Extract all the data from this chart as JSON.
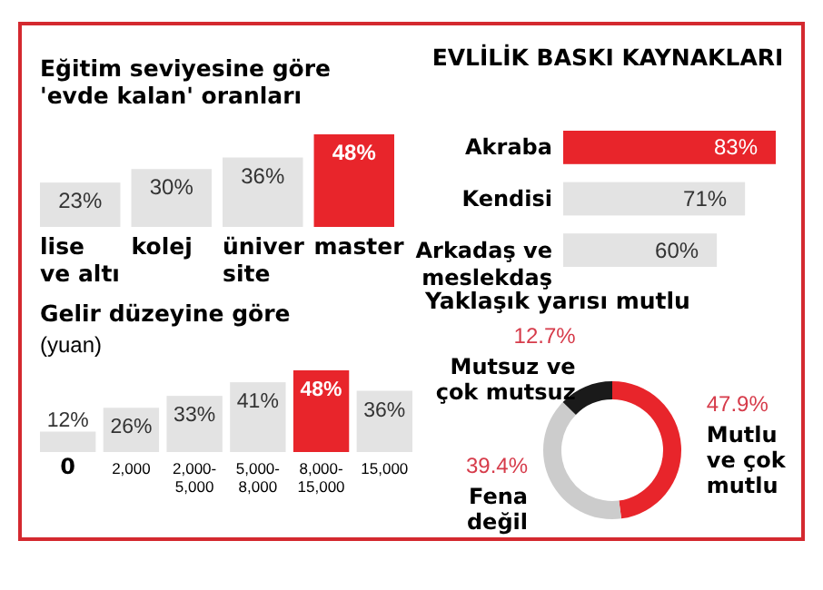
{
  "chart_data": [
    {
      "type": "bar",
      "title": "Eğitim seviyesine göre\n'evde kalan' oranları",
      "categories": [
        "lise\nve altı",
        "kolej",
        "üniver\nsite",
        "master"
      ],
      "values": [
        23,
        30,
        36,
        48
      ],
      "colors": [
        "#e3e3e3",
        "#e3e3e3",
        "#e3e3e3",
        "#e8252b"
      ],
      "value_labels": [
        "23%",
        "30%",
        "36%",
        "48%"
      ]
    },
    {
      "type": "bar",
      "title": "Gelir düzeyine göre",
      "subtitle": "(yuan)",
      "categories": [
        "0",
        "2,000",
        "2,000-\n5,000",
        "5,000-\n8,000",
        "8,000-\n15,000",
        "15,000"
      ],
      "values": [
        12,
        26,
        33,
        41,
        48,
        36
      ],
      "colors": [
        "#e3e3e3",
        "#e3e3e3",
        "#e3e3e3",
        "#e3e3e3",
        "#e8252b",
        "#e3e3e3"
      ],
      "value_labels": [
        "12%",
        "26%",
        "33%",
        "41%",
        "48%",
        "36%"
      ]
    },
    {
      "type": "bar",
      "orientation": "horizontal",
      "title": "EVLİLİK BASKI KAYNAKLARI",
      "categories": [
        "Akraba",
        "Kendisi",
        "Arkadaş ve\nmeslekdaş"
      ],
      "values": [
        83,
        71,
        60
      ],
      "colors": [
        "#e8252b",
        "#e3e3e3",
        "#e3e3e3"
      ],
      "value_labels": [
        "83%",
        "71%",
        "60%"
      ]
    },
    {
      "type": "donut",
      "title": "Yaklaşık yarısı mutlu",
      "categories": [
        "Mutlu\nve çok\nmutlu",
        "Fena\ndeğil",
        "Mutsuz ve\nçok mutsuz"
      ],
      "values": [
        47.9,
        39.4,
        12.7
      ],
      "colors": [
        "#e8252b",
        "#cccccc",
        "#1a1a1a"
      ],
      "value_labels": [
        "47.9%",
        "39.4%",
        "12.7%"
      ]
    }
  ]
}
